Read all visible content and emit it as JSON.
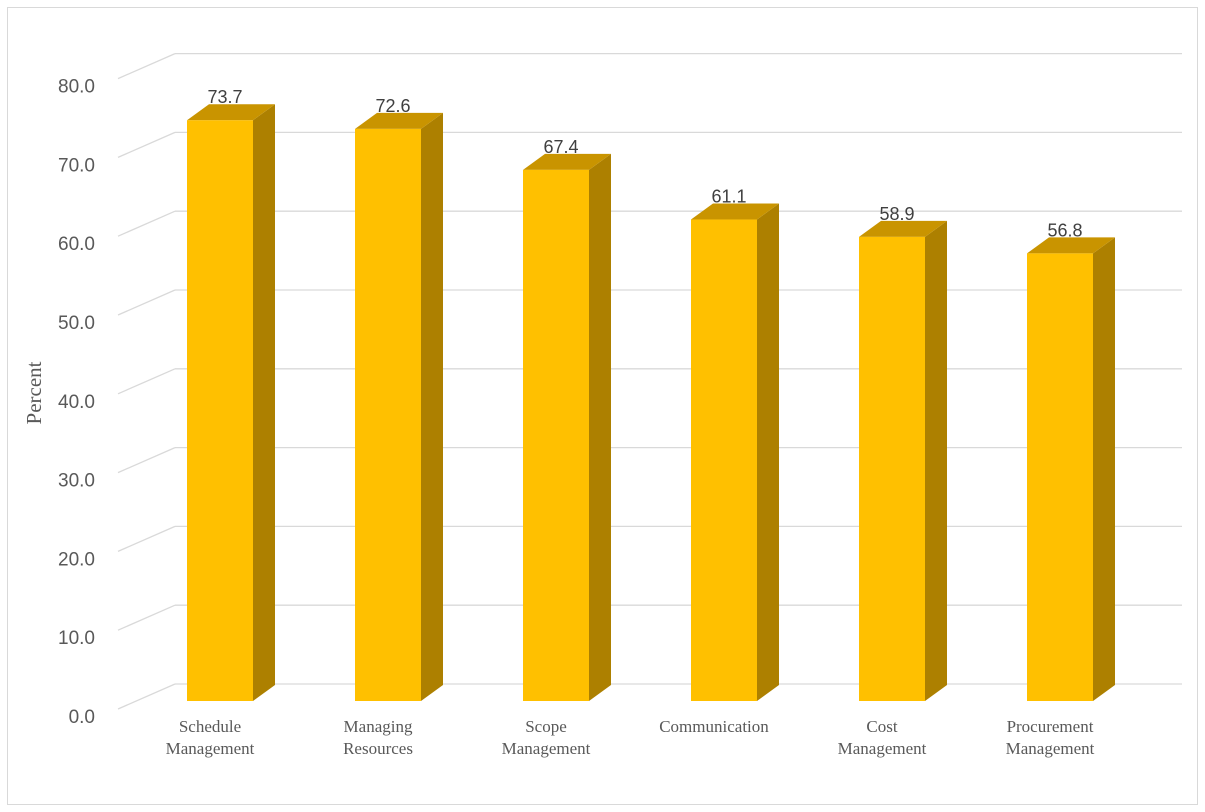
{
  "chart_data": {
    "type": "bar",
    "style": "3d-column",
    "categories": [
      [
        "Schedule",
        "Management"
      ],
      [
        "Managing",
        "Resources"
      ],
      [
        "Scope",
        "Management"
      ],
      [
        "Communication"
      ],
      [
        "Cost",
        "Management"
      ],
      [
        "Procurement",
        "Management"
      ]
    ],
    "values": [
      73.7,
      72.6,
      67.4,
      61.1,
      58.9,
      56.8
    ],
    "value_labels": [
      "73.7",
      "72.6",
      "67.4",
      "61.1",
      "58.9",
      "56.8"
    ],
    "ylabel": "Percent",
    "xlabel": "",
    "ylim": [
      0,
      80
    ],
    "yticks": [
      "0.0",
      "10.0",
      "20.0",
      "30.0",
      "40.0",
      "50.0",
      "60.0",
      "70.0",
      "80.0"
    ],
    "grid": true,
    "legend": "none",
    "colors": {
      "bar_front": "#FFC000",
      "bar_side": "#AD8000",
      "bar_top": "#C99400",
      "grid": "#D9D9D9"
    }
  }
}
